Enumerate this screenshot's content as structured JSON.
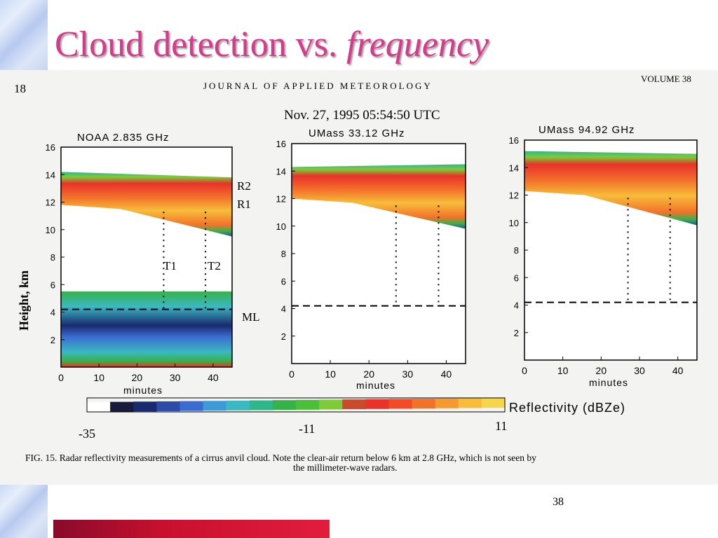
{
  "slide": {
    "title_main": "Cloud detection vs.",
    "title_italic": "frequency",
    "page_number": "38"
  },
  "journal": {
    "page": "18",
    "name": "JOURNAL OF APPLIED METEOROLOGY",
    "volume": "VOLUME 38"
  },
  "figure": {
    "date_label": "Nov. 27, 1995 05:54:50 UTC",
    "ylabel": "Height, km",
    "xlabel": "minutes",
    "caption_line1": "FIG. 15. Radar reflectivity measurements of a cirrus anvil cloud. Note the clear-air return below 6 km at 2.8 GHz, which is not seen by",
    "caption_line2": "the millimeter-wave radars.",
    "annotations": {
      "r2": "R2",
      "r1": "R1",
      "t1": "T1",
      "t2": "T2",
      "ml": "ML"
    },
    "colorbar": {
      "label": "Reflectivity  (dBZe)",
      "ticks": [
        "-35",
        "-11",
        "11"
      ],
      "colors": [
        "#ffffff",
        "#1a1a3a",
        "#1a2a6e",
        "#2c4aa8",
        "#3a6cd0",
        "#3c9bd6",
        "#3bb8c2",
        "#2fb68a",
        "#37b24a",
        "#4cbf3a",
        "#7ecb3a",
        "#c94b2d",
        "#e8322a",
        "#f04a26",
        "#f3722a",
        "#f59a30",
        "#f7bd3a",
        "#f5d64a"
      ]
    }
  },
  "chart_data": [
    {
      "type": "heatmap",
      "title": "NOAA 2.835 GHz",
      "x_ticks": [
        "0",
        "10",
        "20",
        "30",
        "40"
      ],
      "y_ticks": [
        "2",
        "4",
        "6",
        "8",
        "10",
        "12",
        "14",
        "16"
      ],
      "xlim": [
        0,
        45
      ],
      "ylim": [
        0,
        16
      ],
      "cloud_layer_km": {
        "top": [
          14.2,
          13.8
        ],
        "base": [
          11.8,
          9.5
        ]
      },
      "clear_air_return_km": [
        0,
        5.5
      ],
      "melting_layer_km": 4.2
    },
    {
      "type": "heatmap",
      "title": "UMass 33.12 GHz",
      "x_ticks": [
        "0",
        "10",
        "20",
        "30",
        "40"
      ],
      "y_ticks": [
        "2",
        "4",
        "6",
        "8",
        "10",
        "12",
        "14",
        "16"
      ],
      "xlim": [
        0,
        45
      ],
      "ylim": [
        0,
        16
      ],
      "cloud_layer_km": {
        "top": [
          14.3,
          14.5
        ],
        "base": [
          12.0,
          9.8
        ]
      },
      "melting_layer_km": 4.2
    },
    {
      "type": "heatmap",
      "title": "UMass 94.92 GHz",
      "x_ticks": [
        "0",
        "10",
        "20",
        "30",
        "40"
      ],
      "y_ticks": [
        "2",
        "4",
        "6",
        "8",
        "10",
        "12",
        "14",
        "16"
      ],
      "xlim": [
        0,
        45
      ],
      "ylim": [
        0,
        16
      ],
      "cloud_layer_km": {
        "top": [
          15.2,
          15.0
        ],
        "base": [
          12.3,
          9.8
        ]
      },
      "melting_layer_km": 4.2
    }
  ]
}
